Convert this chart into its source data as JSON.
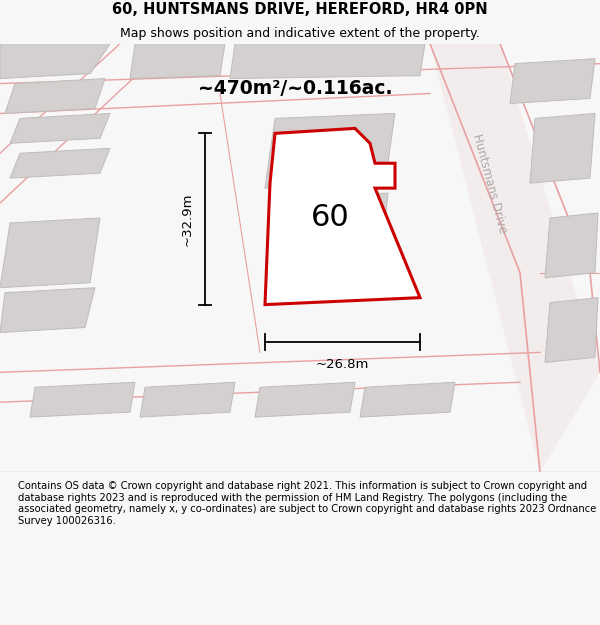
{
  "title": "60, HUNTSMANS DRIVE, HEREFORD, HR4 0PN",
  "subtitle": "Map shows position and indicative extent of the property.",
  "footer": "Contains OS data © Crown copyright and database right 2021. This information is subject to Crown copyright and database rights 2023 and is reproduced with the permission of HM Land Registry. The polygons (including the associated geometry, namely x, y co-ordinates) are subject to Crown copyright and database rights 2023 Ordnance Survey 100026316.",
  "area_label": "~470m²/~0.116ac.",
  "width_label": "~26.8m",
  "height_label": "~32.9m",
  "plot_number": "60",
  "bg_color": "#f7f7f7",
  "map_bg": "#f9f4f4",
  "plot_color": "#cc0000",
  "plot_fill": "#f5f0f0",
  "building_fill": "#d4d0d0",
  "building_edge": "#c0bbbb",
  "road_line_color": "#e8a0a0",
  "title_fontsize": 10.5,
  "subtitle_fontsize": 9,
  "footer_fontsize": 7.2,
  "street_label_color": "#b0a8a8"
}
